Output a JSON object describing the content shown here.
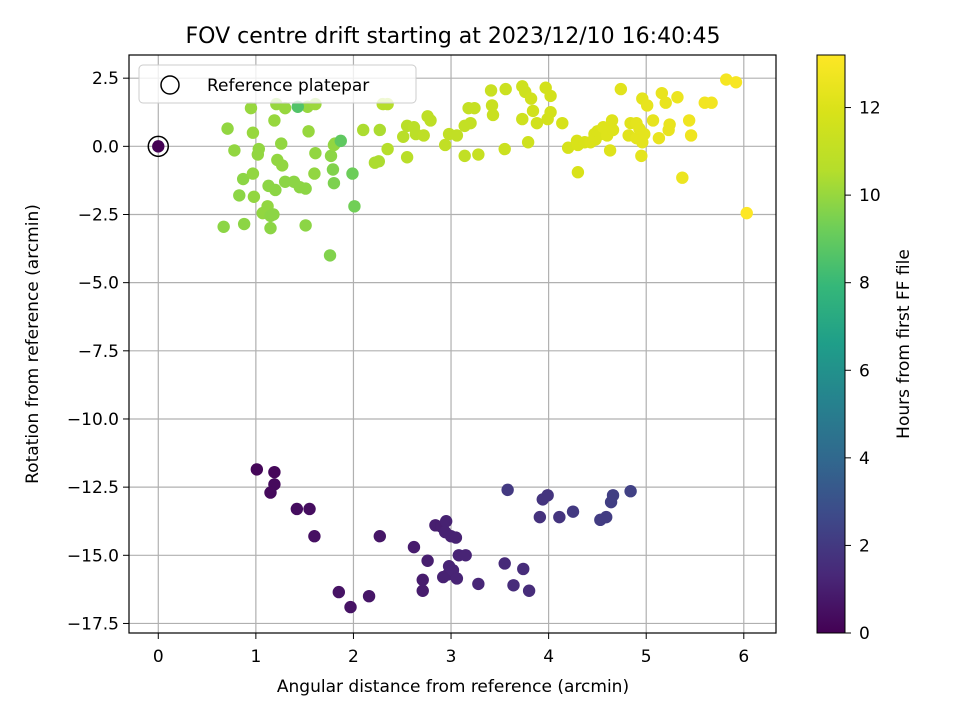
{
  "chart_data": {
    "type": "scatter",
    "title": "FOV centre drift starting at 2023/12/10 16:40:45",
    "xlabel": "Angular distance from reference (arcmin)",
    "ylabel": "Rotation from reference (arcmin)",
    "xlim": [
      -0.3,
      6.33
    ],
    "ylim": [
      -17.85,
      3.35
    ],
    "x_ticks": [
      0,
      1,
      2,
      3,
      4,
      5,
      6
    ],
    "x_tick_labels": [
      "0",
      "1",
      "2",
      "3",
      "4",
      "5",
      "6"
    ],
    "y_ticks": [
      2.5,
      0,
      -2.5,
      -5,
      -7.5,
      -10,
      -12.5,
      -15,
      -17.5
    ],
    "y_tick_labels": [
      "2.5",
      "0.0",
      "−2.5",
      "−5.0",
      "−7.5",
      "−10.0",
      "−12.5",
      "−15.0",
      "−17.5"
    ],
    "grid": true,
    "legend": {
      "placement": "top-left",
      "entries": [
        "Reference platepar"
      ]
    },
    "reference_point": {
      "x": 0,
      "y": 0
    },
    "colorbar": {
      "label": "Hours from first FF file",
      "colormap": "viridis",
      "range": [
        0,
        13.2
      ],
      "ticks": [
        0,
        2,
        4,
        6,
        8,
        10,
        12
      ],
      "tick_labels": [
        "0",
        "2",
        "4",
        "6",
        "8",
        "10",
        "12"
      ]
    },
    "points": [
      {
        "x": 1.01,
        "y": -11.85,
        "h": 0.2
      },
      {
        "x": 1.19,
        "y": -11.95,
        "h": 0.2
      },
      {
        "x": 1.19,
        "y": -12.4,
        "h": 0.3
      },
      {
        "x": 1.15,
        "y": -12.7,
        "h": 0.3
      },
      {
        "x": 1.42,
        "y": -13.3,
        "h": 0.4
      },
      {
        "x": 1.55,
        "y": -13.3,
        "h": 0.4
      },
      {
        "x": 1.6,
        "y": -14.3,
        "h": 0.5
      },
      {
        "x": 1.85,
        "y": -16.35,
        "h": 0.6
      },
      {
        "x": 1.97,
        "y": -16.9,
        "h": 0.6
      },
      {
        "x": 2.16,
        "y": -16.5,
        "h": 0.7
      },
      {
        "x": 2.27,
        "y": -14.3,
        "h": 0.7
      },
      {
        "x": 2.62,
        "y": -14.7,
        "h": 0.9
      },
      {
        "x": 2.71,
        "y": -15.9,
        "h": 0.9
      },
      {
        "x": 2.71,
        "y": -16.3,
        "h": 0.9
      },
      {
        "x": 2.76,
        "y": -15.2,
        "h": 1.0
      },
      {
        "x": 2.84,
        "y": -13.9,
        "h": 1.0
      },
      {
        "x": 2.9,
        "y": -13.95,
        "h": 1.0
      },
      {
        "x": 2.95,
        "y": -13.75,
        "h": 1.1
      },
      {
        "x": 2.94,
        "y": -14.15,
        "h": 1.1
      },
      {
        "x": 3.0,
        "y": -14.3,
        "h": 1.1
      },
      {
        "x": 3.05,
        "y": -14.35,
        "h": 1.1
      },
      {
        "x": 2.92,
        "y": -15.8,
        "h": 1.1
      },
      {
        "x": 2.97,
        "y": -15.7,
        "h": 1.1
      },
      {
        "x": 2.98,
        "y": -15.4,
        "h": 1.2
      },
      {
        "x": 3.02,
        "y": -15.55,
        "h": 1.2
      },
      {
        "x": 3.06,
        "y": -15.85,
        "h": 1.2
      },
      {
        "x": 3.08,
        "y": -15.0,
        "h": 1.2
      },
      {
        "x": 3.15,
        "y": -15.0,
        "h": 1.2
      },
      {
        "x": 3.28,
        "y": -16.05,
        "h": 1.3
      },
      {
        "x": 3.55,
        "y": -15.3,
        "h": 1.4
      },
      {
        "x": 3.64,
        "y": -16.1,
        "h": 1.5
      },
      {
        "x": 3.74,
        "y": -15.5,
        "h": 1.5
      },
      {
        "x": 3.8,
        "y": -16.3,
        "h": 1.5
      },
      {
        "x": 3.58,
        "y": -12.6,
        "h": 2.0
      },
      {
        "x": 3.91,
        "y": -13.6,
        "h": 1.7
      },
      {
        "x": 3.94,
        "y": -12.95,
        "h": 1.8
      },
      {
        "x": 3.99,
        "y": -12.8,
        "h": 1.8
      },
      {
        "x": 4.11,
        "y": -13.6,
        "h": 1.8
      },
      {
        "x": 4.25,
        "y": -13.4,
        "h": 2.0
      },
      {
        "x": 4.53,
        "y": -13.7,
        "h": 2.1
      },
      {
        "x": 4.59,
        "y": -13.6,
        "h": 2.1
      },
      {
        "x": 4.64,
        "y": -13.05,
        "h": 2.2
      },
      {
        "x": 4.66,
        "y": -12.8,
        "h": 2.2
      },
      {
        "x": 4.84,
        "y": -12.65,
        "h": 2.3
      },
      {
        "x": 0.67,
        "y": -2.95,
        "h": 9.8
      },
      {
        "x": 0.71,
        "y": 0.65,
        "h": 9.9
      },
      {
        "x": 0.78,
        "y": -0.15,
        "h": 9.9
      },
      {
        "x": 0.83,
        "y": -1.8,
        "h": 9.8
      },
      {
        "x": 0.87,
        "y": -1.2,
        "h": 9.8
      },
      {
        "x": 0.88,
        "y": -2.85,
        "h": 9.8
      },
      {
        "x": 0.95,
        "y": 1.4,
        "h": 10.0
      },
      {
        "x": 0.97,
        "y": 0.5,
        "h": 10.0
      },
      {
        "x": 0.97,
        "y": -1.0,
        "h": 9.9
      },
      {
        "x": 0.98,
        "y": -1.85,
        "h": 9.9
      },
      {
        "x": 1.02,
        "y": -0.3,
        "h": 9.9
      },
      {
        "x": 1.03,
        "y": -0.1,
        "h": 9.9
      },
      {
        "x": 1.07,
        "y": -2.45,
        "h": 9.9
      },
      {
        "x": 1.12,
        "y": -2.2,
        "h": 9.9
      },
      {
        "x": 1.13,
        "y": -1.45,
        "h": 9.8
      },
      {
        "x": 1.15,
        "y": -2.55,
        "h": 9.8
      },
      {
        "x": 1.15,
        "y": -3.0,
        "h": 9.8
      },
      {
        "x": 1.18,
        "y": -2.5,
        "h": 9.8
      },
      {
        "x": 1.2,
        "y": -1.6,
        "h": 9.8
      },
      {
        "x": 1.19,
        "y": 0.95,
        "h": 10.0
      },
      {
        "x": 1.21,
        "y": 1.55,
        "h": 10.0
      },
      {
        "x": 1.22,
        "y": -0.5,
        "h": 9.9
      },
      {
        "x": 1.26,
        "y": 0.1,
        "h": 9.9
      },
      {
        "x": 1.27,
        "y": -0.7,
        "h": 9.9
      },
      {
        "x": 1.3,
        "y": -1.3,
        "h": 9.8
      },
      {
        "x": 1.3,
        "y": 1.4,
        "h": 10.0
      },
      {
        "x": 1.39,
        "y": -1.3,
        "h": 9.8
      },
      {
        "x": 1.45,
        "y": -1.5,
        "h": 9.8
      },
      {
        "x": 1.51,
        "y": -1.55,
        "h": 9.8
      },
      {
        "x": 1.51,
        "y": -2.9,
        "h": 9.8
      },
      {
        "x": 1.53,
        "y": 1.45,
        "h": 10.0
      },
      {
        "x": 1.54,
        "y": 0.55,
        "h": 10.0
      },
      {
        "x": 1.6,
        "y": -1.0,
        "h": 9.9
      },
      {
        "x": 1.61,
        "y": -0.25,
        "h": 9.9
      },
      {
        "x": 1.61,
        "y": 1.55,
        "h": 10.1
      },
      {
        "x": 1.43,
        "y": 1.45,
        "h": 8.6
      },
      {
        "x": 1.76,
        "y": -4.0,
        "h": 9.6
      },
      {
        "x": 1.77,
        "y": -0.35,
        "h": 9.8
      },
      {
        "x": 1.8,
        "y": 0.05,
        "h": 9.9
      },
      {
        "x": 1.79,
        "y": -0.85,
        "h": 9.6
      },
      {
        "x": 1.8,
        "y": -1.35,
        "h": 9.5
      },
      {
        "x": 1.81,
        "y": 0.1,
        "h": 9.9
      },
      {
        "x": 1.87,
        "y": 0.2,
        "h": 8.9
      },
      {
        "x": 1.99,
        "y": -1.0,
        "h": 9.2
      },
      {
        "x": 2.01,
        "y": -2.2,
        "h": 9.3
      },
      {
        "x": 2.1,
        "y": 0.6,
        "h": 10.4
      },
      {
        "x": 2.22,
        "y": -0.6,
        "h": 10.4
      },
      {
        "x": 2.26,
        "y": -0.55,
        "h": 10.4
      },
      {
        "x": 2.27,
        "y": 0.6,
        "h": 10.4
      },
      {
        "x": 2.3,
        "y": 1.55,
        "h": 10.6
      },
      {
        "x": 2.35,
        "y": 1.55,
        "h": 10.6
      },
      {
        "x": 2.35,
        "y": -0.1,
        "h": 10.6
      },
      {
        "x": 2.51,
        "y": 0.35,
        "h": 10.7
      },
      {
        "x": 2.55,
        "y": 0.75,
        "h": 10.7
      },
      {
        "x": 2.55,
        "y": -0.4,
        "h": 10.7
      },
      {
        "x": 2.62,
        "y": 0.7,
        "h": 10.8
      },
      {
        "x": 2.64,
        "y": 0.45,
        "h": 10.8
      },
      {
        "x": 2.72,
        "y": 0.4,
        "h": 10.9
      },
      {
        "x": 2.76,
        "y": 1.1,
        "h": 10.9
      },
      {
        "x": 2.79,
        "y": 0.95,
        "h": 10.9
      },
      {
        "x": 2.94,
        "y": 0.05,
        "h": 11.0
      },
      {
        "x": 2.98,
        "y": 0.45,
        "h": 11.0
      },
      {
        "x": 3.06,
        "y": 0.4,
        "h": 11.0
      },
      {
        "x": 3.14,
        "y": -0.35,
        "h": 11.0
      },
      {
        "x": 3.14,
        "y": 0.75,
        "h": 11.1
      },
      {
        "x": 3.18,
        "y": 1.4,
        "h": 11.1
      },
      {
        "x": 3.2,
        "y": 0.85,
        "h": 11.1
      },
      {
        "x": 3.24,
        "y": 1.4,
        "h": 11.2
      },
      {
        "x": 3.28,
        "y": -0.3,
        "h": 11.2
      },
      {
        "x": 3.41,
        "y": 2.05,
        "h": 11.3
      },
      {
        "x": 3.42,
        "y": 1.5,
        "h": 11.3
      },
      {
        "x": 3.43,
        "y": 1.15,
        "h": 11.3
      },
      {
        "x": 3.56,
        "y": 2.1,
        "h": 11.4
      },
      {
        "x": 3.55,
        "y": -0.1,
        "h": 11.4
      },
      {
        "x": 3.73,
        "y": 2.2,
        "h": 11.5
      },
      {
        "x": 3.73,
        "y": 1.0,
        "h": 11.5
      },
      {
        "x": 3.76,
        "y": 2.0,
        "h": 11.5
      },
      {
        "x": 3.79,
        "y": 0.15,
        "h": 11.5
      },
      {
        "x": 3.82,
        "y": 1.75,
        "h": 11.6
      },
      {
        "x": 3.84,
        "y": 1.3,
        "h": 11.6
      },
      {
        "x": 3.88,
        "y": 0.85,
        "h": 11.6
      },
      {
        "x": 3.97,
        "y": 2.15,
        "h": 11.7
      },
      {
        "x": 3.99,
        "y": 1.0,
        "h": 11.7
      },
      {
        "x": 4.02,
        "y": 1.85,
        "h": 11.7
      },
      {
        "x": 4.02,
        "y": 1.25,
        "h": 11.7
      },
      {
        "x": 4.14,
        "y": 0.85,
        "h": 11.8
      },
      {
        "x": 4.2,
        "y": -0.05,
        "h": 11.8
      },
      {
        "x": 4.29,
        "y": 0.2,
        "h": 11.9
      },
      {
        "x": 4.3,
        "y": 0.05,
        "h": 11.9
      },
      {
        "x": 4.3,
        "y": -0.95,
        "h": 11.9
      },
      {
        "x": 4.37,
        "y": 0.15,
        "h": 11.9
      },
      {
        "x": 4.43,
        "y": 0.15,
        "h": 12.0
      },
      {
        "x": 4.47,
        "y": 0.45,
        "h": 12.0
      },
      {
        "x": 4.48,
        "y": 0.25,
        "h": 12.0
      },
      {
        "x": 4.5,
        "y": 0.55,
        "h": 12.0
      },
      {
        "x": 4.53,
        "y": 0.45,
        "h": 12.0
      },
      {
        "x": 4.56,
        "y": 0.7,
        "h": 12.1
      },
      {
        "x": 4.6,
        "y": 0.4,
        "h": 12.1
      },
      {
        "x": 4.63,
        "y": -0.15,
        "h": 12.1
      },
      {
        "x": 4.65,
        "y": 0.95,
        "h": 12.1
      },
      {
        "x": 4.66,
        "y": 0.6,
        "h": 12.1
      },
      {
        "x": 4.74,
        "y": 2.1,
        "h": 12.2
      },
      {
        "x": 4.82,
        "y": 0.4,
        "h": 12.2
      },
      {
        "x": 4.84,
        "y": 0.85,
        "h": 12.2
      },
      {
        "x": 4.9,
        "y": 0.3,
        "h": 12.3
      },
      {
        "x": 4.9,
        "y": 0.85,
        "h": 12.3
      },
      {
        "x": 4.93,
        "y": 0.65,
        "h": 12.3
      },
      {
        "x": 4.95,
        "y": -0.35,
        "h": 12.3
      },
      {
        "x": 4.96,
        "y": 0.15,
        "h": 12.3
      },
      {
        "x": 4.96,
        "y": 1.75,
        "h": 12.3
      },
      {
        "x": 4.98,
        "y": 0.45,
        "h": 12.3
      },
      {
        "x": 5.01,
        "y": 1.5,
        "h": 12.4
      },
      {
        "x": 5.07,
        "y": 0.95,
        "h": 12.4
      },
      {
        "x": 5.13,
        "y": 0.3,
        "h": 12.5
      },
      {
        "x": 5.16,
        "y": 1.95,
        "h": 12.5
      },
      {
        "x": 5.2,
        "y": 1.6,
        "h": 12.5
      },
      {
        "x": 5.23,
        "y": 0.6,
        "h": 12.5
      },
      {
        "x": 5.24,
        "y": 0.8,
        "h": 12.5
      },
      {
        "x": 5.32,
        "y": 1.8,
        "h": 12.6
      },
      {
        "x": 5.37,
        "y": -1.15,
        "h": 12.6
      },
      {
        "x": 5.44,
        "y": 0.95,
        "h": 12.7
      },
      {
        "x": 5.46,
        "y": 0.4,
        "h": 12.7
      },
      {
        "x": 5.6,
        "y": 1.6,
        "h": 12.8
      },
      {
        "x": 5.67,
        "y": 1.6,
        "h": 12.8
      },
      {
        "x": 5.82,
        "y": 2.45,
        "h": 12.9
      },
      {
        "x": 5.92,
        "y": 2.35,
        "h": 13.0
      },
      {
        "x": 6.03,
        "y": -2.45,
        "h": 13.2
      },
      {
        "x": 0.0,
        "y": 0.0,
        "h": 0.0
      }
    ]
  }
}
